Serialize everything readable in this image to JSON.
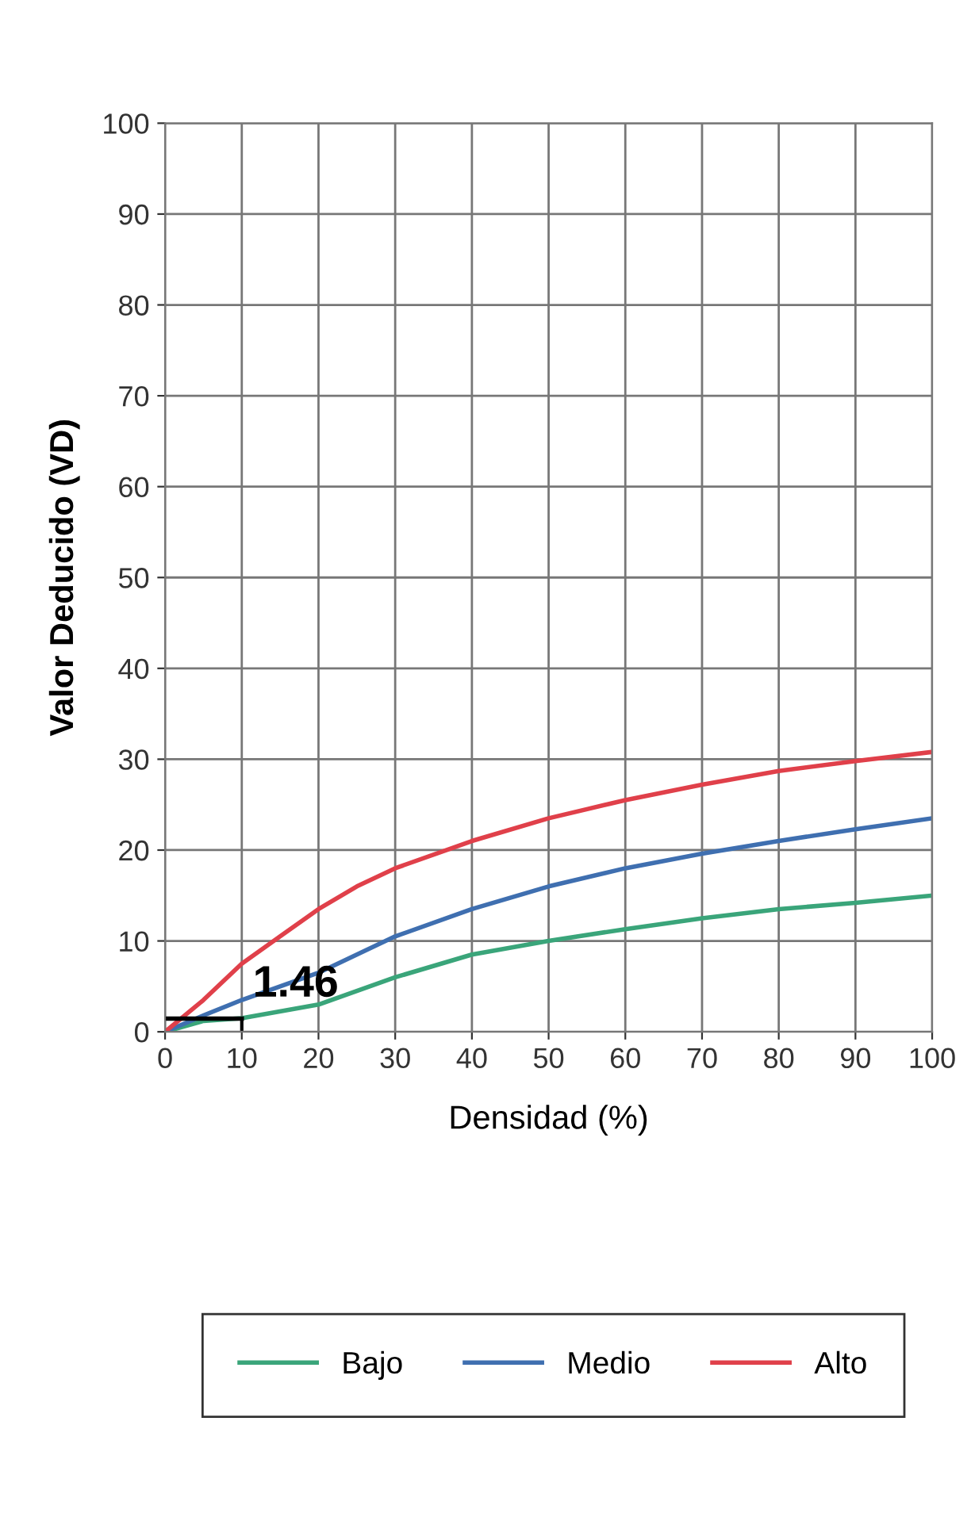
{
  "chart_data": {
    "type": "line",
    "xlabel": "Densidad (%)",
    "ylabel": "Valor Deducido (VD)",
    "series": [
      {
        "name": "Bajo",
        "color": "#3aa57a",
        "x": [
          0,
          5,
          10,
          20,
          30,
          40,
          50,
          60,
          70,
          80,
          90,
          100
        ],
        "values": [
          0,
          1.2,
          1.5,
          3,
          6,
          8.5,
          10,
          11.3,
          12.5,
          13.5,
          14.2,
          15
        ]
      },
      {
        "name": "Medio",
        "color": "#3f6fb0",
        "x": [
          0,
          5,
          10,
          20,
          30,
          40,
          50,
          60,
          70,
          80,
          90,
          100
        ],
        "values": [
          0,
          1.8,
          3.5,
          6.5,
          10.5,
          13.5,
          16,
          18,
          19.6,
          21,
          22.3,
          23.5
        ]
      },
      {
        "name": "Alto",
        "color": "#e0404a",
        "x": [
          0,
          5,
          10,
          15,
          20,
          25,
          30,
          40,
          50,
          60,
          70,
          80,
          90,
          100
        ],
        "values": [
          0,
          3.5,
          7.5,
          10.5,
          13.5,
          16,
          18,
          21,
          23.5,
          25.5,
          27.2,
          28.7,
          29.8,
          30.8
        ]
      }
    ],
    "annotations": [
      {
        "text": "1.46",
        "x": 10,
        "y": 1.46
      }
    ],
    "xlim": [
      0,
      100
    ],
    "xticks": [
      0,
      10,
      20,
      30,
      40,
      50,
      60,
      70,
      80,
      90,
      100
    ],
    "ylim": [
      0,
      100
    ],
    "yticks": [
      0,
      10,
      20,
      30,
      40,
      50,
      60,
      70,
      80,
      90,
      100
    ],
    "grid": true,
    "legend": "bottom",
    "marker": "none",
    "line_style": "solid"
  }
}
